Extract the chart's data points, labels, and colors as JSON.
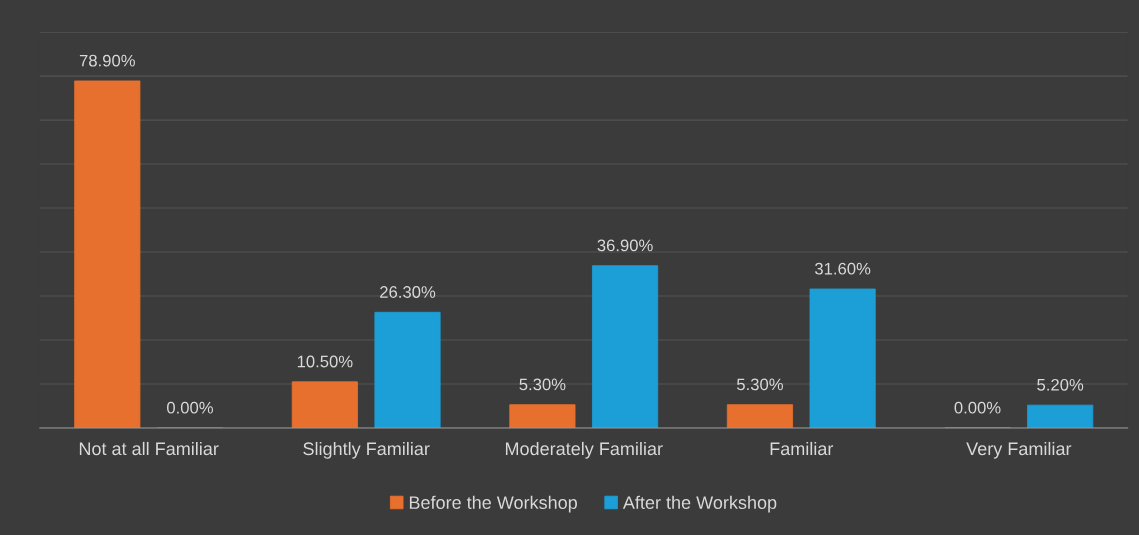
{
  "chart_data": {
    "type": "bar",
    "categories": [
      "Not at all Familiar",
      "Slightly Familiar",
      "Moderately Familiar",
      "Familiar",
      "Very Familiar"
    ],
    "series": [
      {
        "name": "Before the Workshop",
        "color": "#e8702e",
        "values": [
          78.9,
          10.5,
          5.3,
          5.3,
          0.0
        ],
        "value_labels": [
          "78.90%",
          "10.50%",
          "5.30%",
          "5.30%",
          "0.00%"
        ]
      },
      {
        "name": "After the Workshop",
        "color": "#1c9fd6",
        "values": [
          0.0,
          26.3,
          36.9,
          31.6,
          5.2
        ],
        "value_labels": [
          "0.00%",
          "26.30%",
          "36.90%",
          "31.60%",
          "5.20%"
        ]
      }
    ],
    "ylim": [
      0,
      90
    ],
    "yticks": [
      {
        "value": 0,
        "label": null
      },
      {
        "value": 10,
        "label": null
      },
      {
        "value": 20,
        "label": null
      },
      {
        "value": 30,
        "label": null
      },
      {
        "value": 40,
        "label": null
      },
      {
        "value": 50,
        "label": null
      },
      {
        "value": 60,
        "label": null
      },
      {
        "value": 70,
        "label": null
      },
      {
        "value": 80,
        "label": null
      },
      {
        "value": 90,
        "label": null
      }
    ],
    "tick_labels": "x",
    "grid": "y",
    "legend": "bottom"
  }
}
